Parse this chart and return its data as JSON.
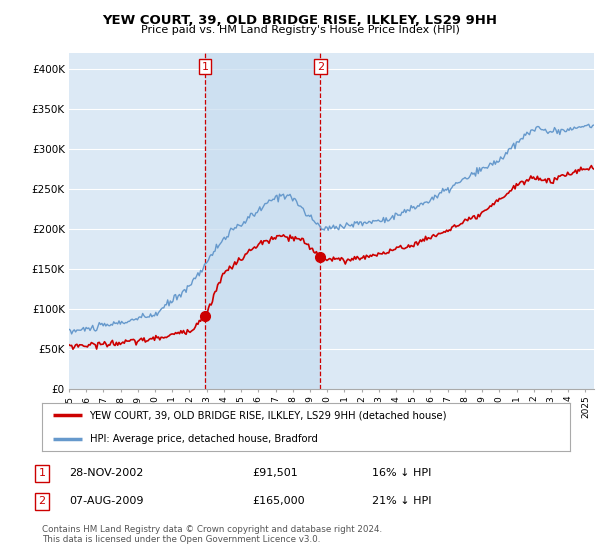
{
  "title": "YEW COURT, 39, OLD BRIDGE RISE, ILKLEY, LS29 9HH",
  "subtitle": "Price paid vs. HM Land Registry's House Price Index (HPI)",
  "ylim": [
    0,
    420000
  ],
  "yticks": [
    0,
    50000,
    100000,
    150000,
    200000,
    250000,
    300000,
    350000,
    400000
  ],
  "ytick_labels": [
    "£0",
    "£50K",
    "£100K",
    "£150K",
    "£200K",
    "£250K",
    "£300K",
    "£350K",
    "£400K"
  ],
  "background_color": "#ffffff",
  "plot_bg_color": "#dce9f5",
  "shade_color": "#c8ddf0",
  "grid_color": "#ffffff",
  "sale1_date": 2002.91,
  "sale1_price": 91501,
  "sale2_date": 2009.6,
  "sale2_price": 165000,
  "legend_line1": "YEW COURT, 39, OLD BRIDGE RISE, ILKLEY, LS29 9HH (detached house)",
  "legend_line2": "HPI: Average price, detached house, Bradford",
  "table_row1": [
    "1",
    "28-NOV-2002",
    "£91,501",
    "16% ↓ HPI"
  ],
  "table_row2": [
    "2",
    "07-AUG-2009",
    "£165,000",
    "21% ↓ HPI"
  ],
  "footnote": "Contains HM Land Registry data © Crown copyright and database right 2024.\nThis data is licensed under the Open Government Licence v3.0.",
  "line_color_red": "#cc0000",
  "line_color_blue": "#6699cc",
  "vline_color": "#cc0000",
  "xlim_start": 1995,
  "xlim_end": 2025.5
}
